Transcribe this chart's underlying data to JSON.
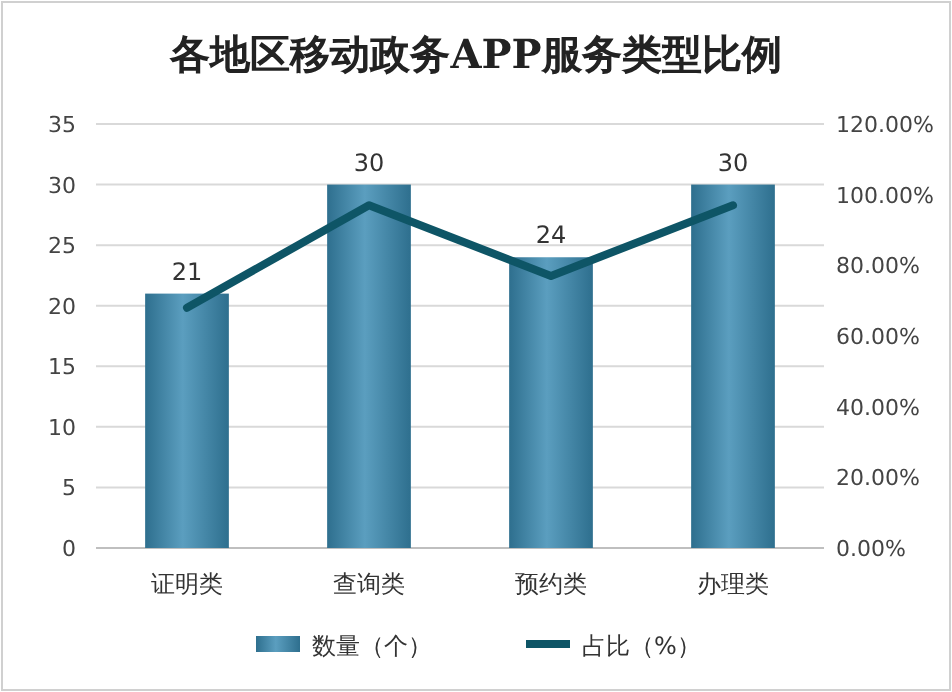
{
  "chart_data": {
    "type": "bar",
    "title": "各地区移动政务APP服务类型比例",
    "categories": [
      "证明类",
      "查询类",
      "预约类",
      "办理类"
    ],
    "series": [
      {
        "name": "数量（个）",
        "color": "#5b9ebf",
        "values": [
          21,
          30,
          24,
          30
        ],
        "value_labels": [
          "21",
          "30",
          "24",
          "30"
        ]
      },
      {
        "name": "占比（%）",
        "type": "line",
        "axis": "y2",
        "color": "#0e5566",
        "values": [
          68,
          97,
          77,
          97
        ]
      }
    ],
    "ylim": [
      0,
      35
    ],
    "yticks": [
      0,
      5,
      10,
      15,
      20,
      25,
      30,
      35
    ],
    "y2lim": [
      0,
      120
    ],
    "y2ticks": [
      {
        "value": 0,
        "label": "0.00%"
      },
      {
        "value": 20,
        "label": "20.00%"
      },
      {
        "value": 40,
        "label": "40.00%"
      },
      {
        "value": 60,
        "label": "60.00%"
      },
      {
        "value": 80,
        "label": "80.00%"
      },
      {
        "value": 100,
        "label": "100.00%"
      },
      {
        "value": 120,
        "label": "120.00%"
      }
    ],
    "grid": "y",
    "legend": "bottom"
  }
}
